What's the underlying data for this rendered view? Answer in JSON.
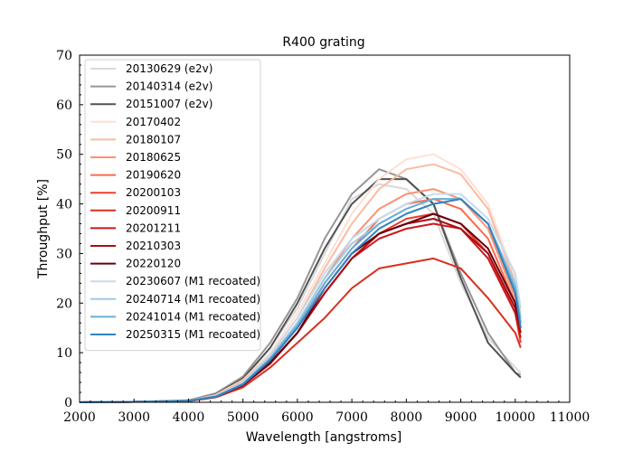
{
  "chart_data": {
    "type": "line",
    "title": "R400 grating",
    "xlabel": "Wavelength [angstroms]",
    "ylabel": "Throughput [%]",
    "xlim": [
      2000,
      11000
    ],
    "ylim": [
      0,
      70
    ],
    "xticks": [
      "2000",
      "3000",
      "4000",
      "5000",
      "6000",
      "7000",
      "8000",
      "9000",
      "10000",
      "11000"
    ],
    "yticks": [
      "0",
      "10",
      "20",
      "30",
      "40",
      "50",
      "60",
      "70"
    ],
    "grid": false,
    "legend_position": "top-left",
    "series": [
      {
        "name": "20130629 (e2v)",
        "color": "#d9d9d9",
        "x": [
          2000,
          3000,
          4000,
          4500,
          5000,
          5500,
          6000,
          6500,
          7000,
          7500,
          8000,
          8500,
          9000,
          9500,
          10000,
          10100
        ],
        "y": [
          0,
          0.1,
          0.3,
          1.5,
          4.5,
          11,
          19,
          30,
          41,
          44,
          43,
          38,
          24,
          13,
          7,
          6
        ]
      },
      {
        "name": "20140314 (e2v)",
        "color": "#969696",
        "x": [
          2000,
          3000,
          4000,
          4500,
          5000,
          5500,
          6000,
          6500,
          7000,
          7500,
          8000,
          8500,
          9000,
          9500,
          10000,
          10100
        ],
        "y": [
          0,
          0.1,
          0.4,
          1.8,
          5.2,
          12,
          21,
          33,
          42,
          47,
          45,
          40,
          26,
          14,
          6,
          5.5
        ]
      },
      {
        "name": "20151007 (e2v)",
        "color": "#525252",
        "x": [
          2000,
          3000,
          4000,
          4500,
          5000,
          5500,
          6000,
          6500,
          7000,
          7500,
          8000,
          8500,
          9000,
          9500,
          10000,
          10100
        ],
        "y": [
          0,
          0.1,
          0.3,
          1.6,
          4.8,
          11,
          20,
          31,
          40,
          45,
          45,
          40,
          25,
          12,
          6,
          5
        ]
      },
      {
        "name": "20170402",
        "color": "#fee0d2",
        "x": [
          2000,
          3000,
          4000,
          4500,
          5000,
          5500,
          6000,
          6500,
          7000,
          7500,
          8000,
          8500,
          9000,
          9500,
          10000,
          10100
        ],
        "y": [
          0,
          0.1,
          0.3,
          1.5,
          4.5,
          10,
          18,
          28,
          38,
          45,
          49,
          50,
          47,
          40,
          25,
          18
        ]
      },
      {
        "name": "20180107",
        "color": "#fcbba1",
        "x": [
          2000,
          3000,
          4000,
          4500,
          5000,
          5500,
          6000,
          6500,
          7000,
          7500,
          8000,
          8500,
          9000,
          9500,
          10000,
          10100
        ],
        "y": [
          0,
          0.1,
          0.3,
          1.4,
          4.3,
          9.5,
          17,
          27,
          36,
          43,
          47,
          48,
          46,
          39,
          24,
          17
        ]
      },
      {
        "name": "20180625",
        "color": "#fc9272",
        "x": [
          2000,
          3000,
          4000,
          4500,
          5000,
          5500,
          6000,
          6500,
          7000,
          7500,
          8000,
          8500,
          9000,
          9500,
          10000,
          10100
        ],
        "y": [
          0,
          0.1,
          0.3,
          1.3,
          4,
          9,
          16,
          25,
          33,
          39,
          42,
          43,
          41,
          35,
          21,
          15
        ]
      },
      {
        "name": "20190620",
        "color": "#fb6a4a",
        "x": [
          2000,
          3000,
          4000,
          4500,
          5000,
          5500,
          6000,
          6500,
          7000,
          7500,
          8000,
          8500,
          9000,
          9500,
          10000,
          10100
        ],
        "y": [
          0,
          0.1,
          0.3,
          1.2,
          3.7,
          8.5,
          15,
          24,
          31,
          37,
          40,
          41,
          39,
          33,
          20,
          14
        ]
      },
      {
        "name": "20200103",
        "color": "#ef3b2c",
        "x": [
          2000,
          3000,
          4000,
          4500,
          5000,
          5500,
          6000,
          6500,
          7000,
          7500,
          8000,
          8500,
          9000,
          9500,
          10000,
          10100
        ],
        "y": [
          0,
          0.1,
          0.3,
          1.1,
          3.5,
          8,
          14,
          22,
          29,
          34,
          37,
          38,
          36,
          30,
          18,
          12
        ]
      },
      {
        "name": "20200911",
        "color": "#d7301f",
        "x": [
          2000,
          3000,
          4000,
          4500,
          5000,
          5500,
          6000,
          6500,
          7000,
          7500,
          8000,
          8500,
          9000,
          9500,
          10000,
          10100
        ],
        "y": [
          0,
          0.1,
          0.2,
          1,
          3,
          7,
          12,
          17,
          23,
          27,
          28,
          29,
          27,
          21,
          14,
          11
        ]
      },
      {
        "name": "20201211",
        "color": "#cb181d",
        "x": [
          2000,
          3000,
          4000,
          4500,
          5000,
          5500,
          6000,
          6500,
          7000,
          7500,
          8000,
          8500,
          9000,
          9500,
          10000,
          10100
        ],
        "y": [
          0,
          0.1,
          0.3,
          1.1,
          3.4,
          7.8,
          14,
          22,
          29,
          33,
          35,
          36,
          35,
          29,
          18,
          13
        ]
      },
      {
        "name": "20210303",
        "color": "#a50f15",
        "x": [
          2000,
          3000,
          4000,
          4500,
          5000,
          5500,
          6000,
          6500,
          7000,
          7500,
          8000,
          8500,
          9000,
          9500,
          10000,
          10100
        ],
        "y": [
          0,
          0.1,
          0.3,
          1.1,
          3.4,
          7.8,
          14,
          22,
          29,
          34,
          36,
          37,
          35,
          30,
          19,
          14
        ]
      },
      {
        "name": "20220120",
        "color": "#67000d",
        "x": [
          2000,
          3000,
          4000,
          4500,
          5000,
          5500,
          6000,
          6500,
          7000,
          7500,
          8000,
          8500,
          9000,
          9500,
          10000,
          10100
        ],
        "y": [
          0,
          0.1,
          0.3,
          1.1,
          3.5,
          8,
          14,
          23,
          30,
          34,
          36,
          38,
          36,
          31,
          20,
          15
        ]
      },
      {
        "name": "20230607 (M1 recoated)",
        "color": "#c6dbef",
        "x": [
          2000,
          3000,
          4000,
          4500,
          5000,
          5500,
          6000,
          6500,
          7000,
          7500,
          8000,
          8500,
          9000,
          9500,
          10000,
          10100
        ],
        "y": [
          0,
          0.1,
          0.3,
          1.3,
          4,
          9.5,
          17,
          26,
          33,
          37,
          40,
          42,
          42,
          37,
          26,
          19
        ]
      },
      {
        "name": "20240714 (M1 recoated)",
        "color": "#9ecae1",
        "x": [
          2000,
          3000,
          4000,
          4500,
          5000,
          5500,
          6000,
          6500,
          7000,
          7500,
          8000,
          8500,
          9000,
          9500,
          10000,
          10100
        ],
        "y": [
          0,
          0.1,
          0.3,
          1.2,
          3.8,
          9,
          16,
          25,
          32,
          36,
          39,
          41,
          41,
          36,
          24,
          17
        ]
      },
      {
        "name": "20241014 (M1 recoated)",
        "color": "#6baed6",
        "x": [
          2000,
          3000,
          4000,
          4500,
          5000,
          5500,
          6000,
          6500,
          7000,
          7500,
          8000,
          8500,
          9000,
          9500,
          10000,
          10100
        ],
        "y": [
          0,
          0.1,
          0.3,
          1.2,
          3.7,
          8.8,
          15.5,
          24,
          31,
          36,
          39,
          41,
          41,
          36,
          23,
          16
        ]
      },
      {
        "name": "20250315 (M1 recoated)",
        "color": "#3182bd",
        "x": [
          2000,
          3000,
          4000,
          4500,
          5000,
          5500,
          6000,
          6500,
          7000,
          7500,
          8000,
          8500,
          9000,
          9500,
          10000,
          10100
        ],
        "y": [
          0,
          0.1,
          0.3,
          1.1,
          3.6,
          8.5,
          15,
          23,
          30,
          35,
          38,
          40,
          41,
          36,
          22,
          15
        ]
      }
    ]
  }
}
